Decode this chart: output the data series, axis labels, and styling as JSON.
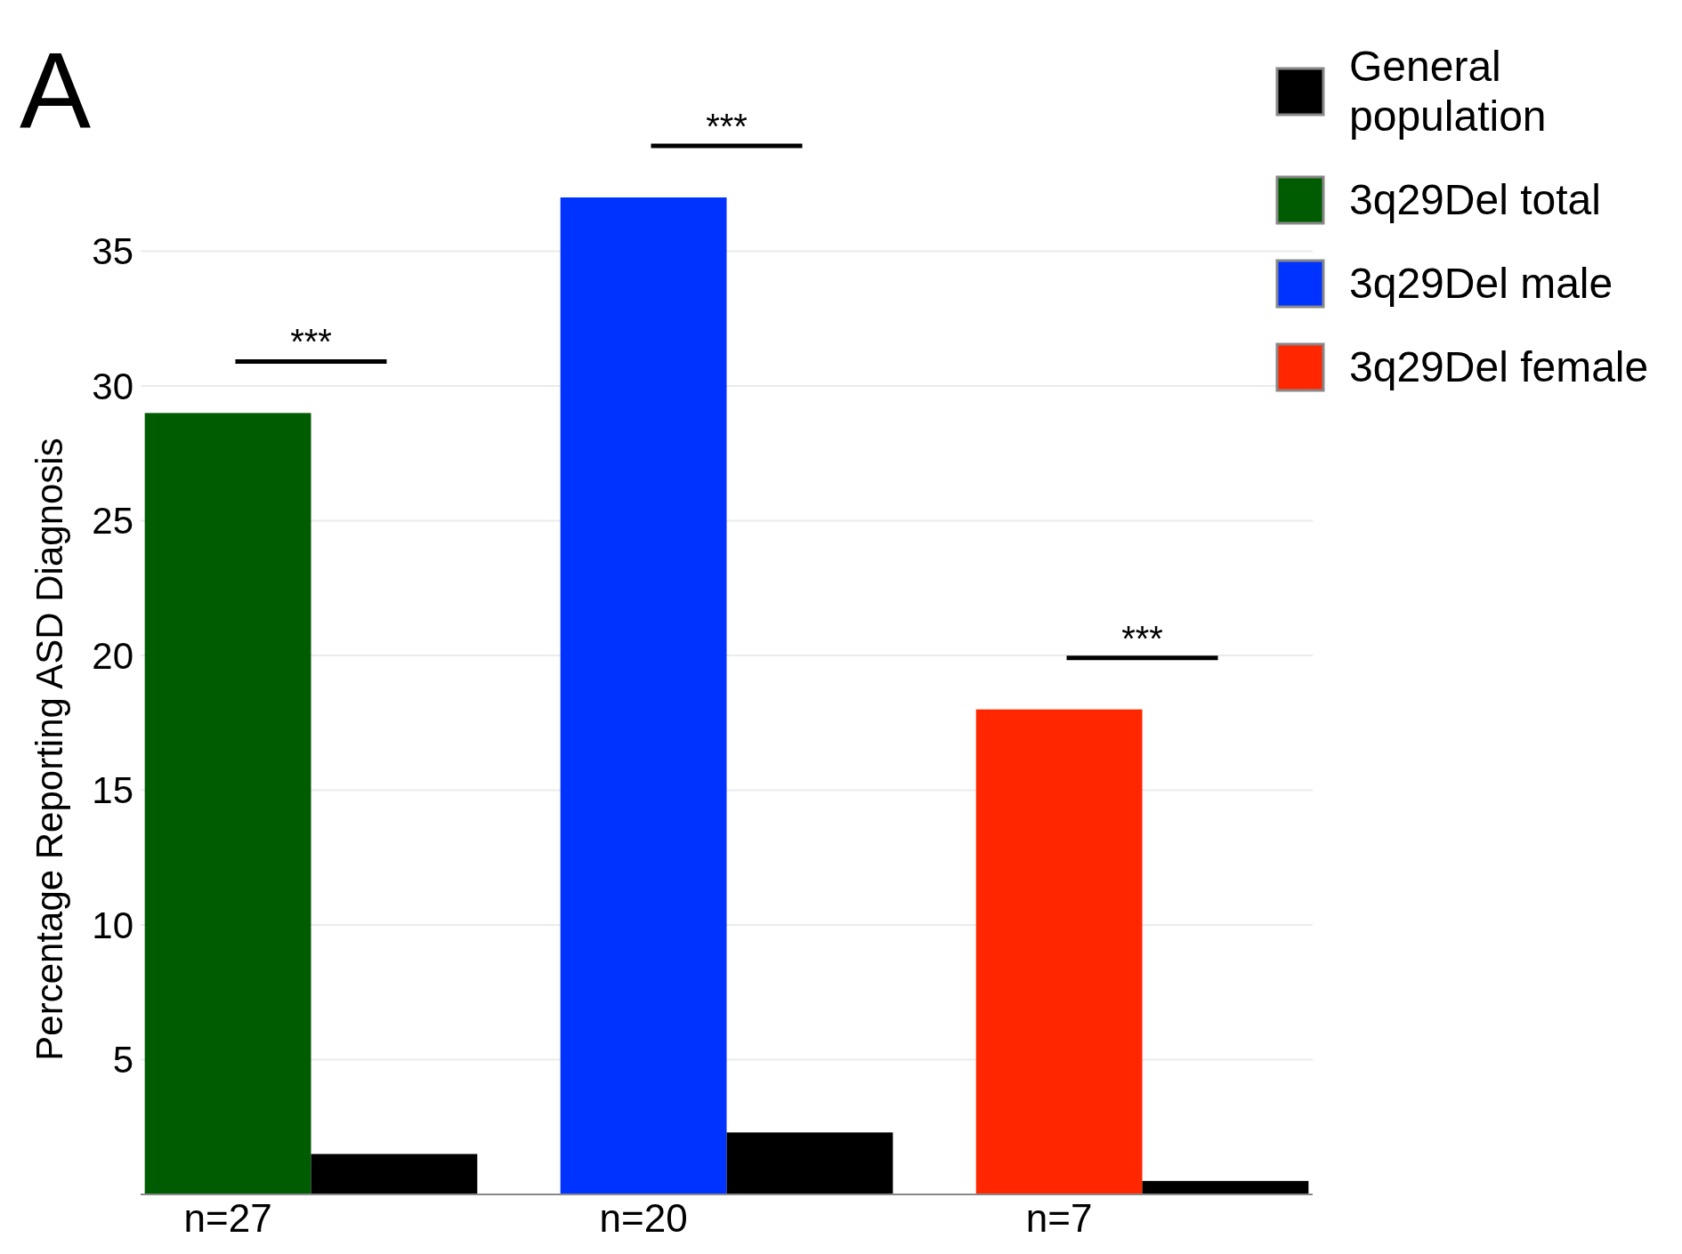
{
  "chart_data": {
    "type": "bar",
    "ylabel": "Percentage Reporting ASD Diagnosis",
    "categories": [
      "n=27",
      "n=20",
      "n=7"
    ],
    "series": [
      {
        "name": "General population",
        "color": "#000000",
        "values": [
          1.5,
          2.3,
          0.5
        ]
      },
      {
        "name": "3q29Del total",
        "color": "#005c00",
        "values": [
          29,
          null,
          null
        ]
      },
      {
        "name": "3q29Del male",
        "color": "#0033ff",
        "values": [
          null,
          37,
          null
        ]
      },
      {
        "name": "3q29Del female",
        "color": "#ff2600",
        "values": [
          null,
          null,
          18
        ]
      }
    ],
    "ylim": [
      0,
      37
    ],
    "yticks": [
      5,
      10,
      15,
      20,
      25,
      30,
      35
    ],
    "grid": "y",
    "legend": "top right",
    "annotations": [
      "A",
      "***",
      "***",
      "***"
    ]
  }
}
